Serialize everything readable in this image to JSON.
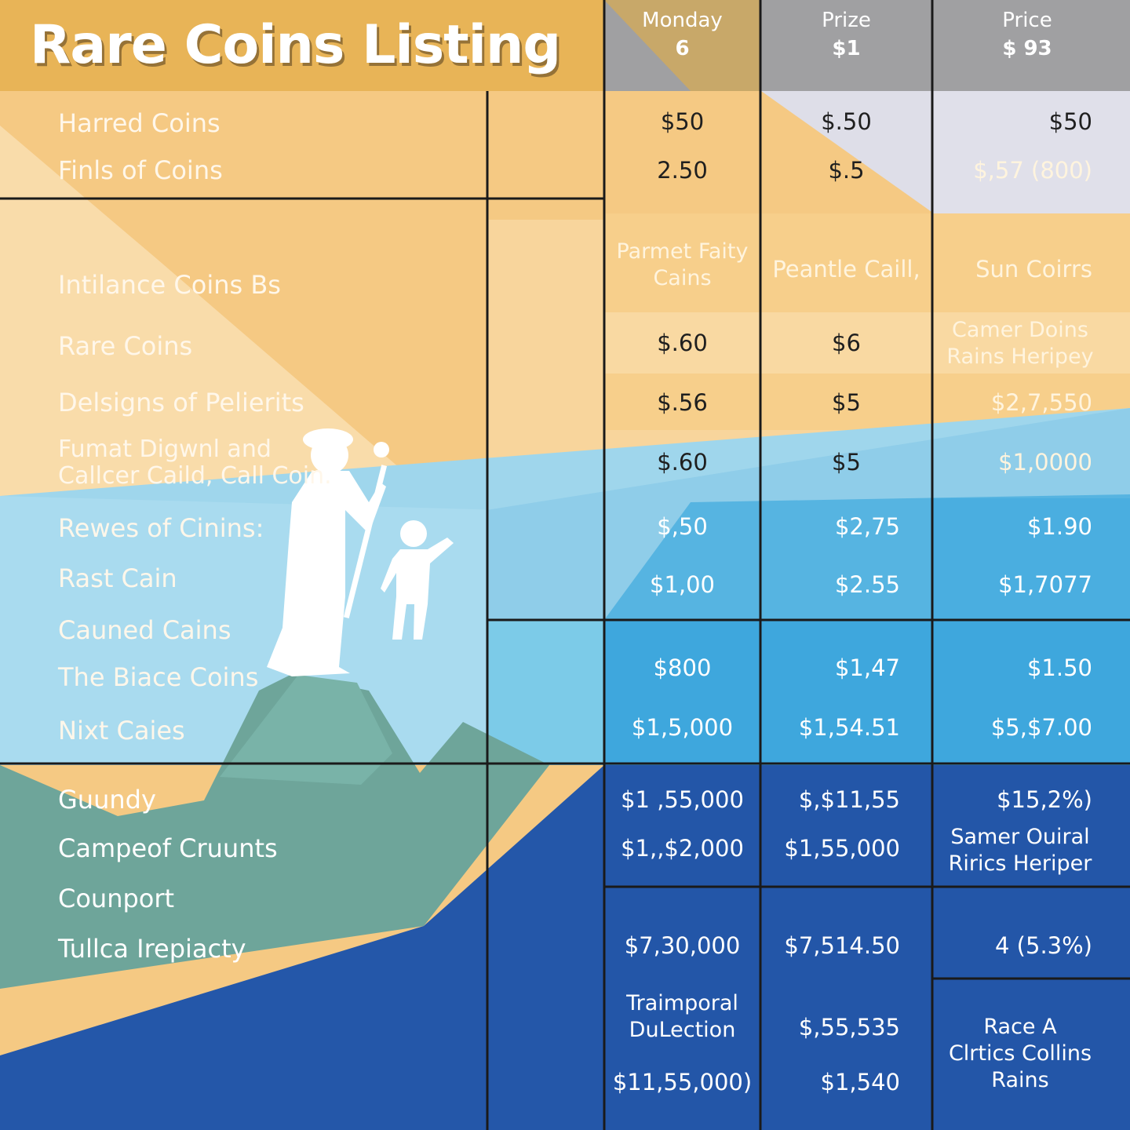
{
  "title": "Rare Coins Listing",
  "header": {
    "col1": {
      "line1": "Monday",
      "line2": "6"
    },
    "col2": {
      "line1": "Prize",
      "line2": "$1"
    },
    "col3": {
      "line1": "Price",
      "line2": "$ 93"
    }
  },
  "rows": [
    {
      "label": "Harred Coins",
      "c1": "$50",
      "c2": "$.50",
      "c3": "$50"
    },
    {
      "label": "Finls of Coins",
      "c1": "2.50",
      "c2": "$.5",
      "c3": "$,57 (800)"
    },
    {
      "label": "Intilance Coins Bs",
      "c1": "Parmet Faity\nCains",
      "c2": "Peantle Caill,",
      "c3": "Sun Coirrs"
    },
    {
      "label": "Rare Coins",
      "c1": "$.60",
      "c2": "$6",
      "c3": "Camer Doins\nRains Heripey"
    },
    {
      "label": "Delsigns of Pelierits",
      "c1": "$.56",
      "c2": "$5",
      "c3": "$2,7,550"
    },
    {
      "label": "Fumat Digwnl and\nCallcer Caild, Call Coin.",
      "c1": "$.60",
      "c2": "$5",
      "c3": "$1,0000"
    },
    {
      "label": "Rewes of Cinins:",
      "c1": "$,50",
      "c2": "$2,75",
      "c3": "$1.90"
    },
    {
      "label": "Rast Cain",
      "c1": "$1,00",
      "c2": "$2.55",
      "c3": "$1,7077"
    },
    {
      "label": "Cauned Cains",
      "c1": "",
      "c2": "",
      "c3": ""
    },
    {
      "label": "The Biace Coins",
      "c1": "$800",
      "c2": "$1,47",
      "c3": "$1.50"
    },
    {
      "label": "Nixt Caies",
      "c1": "$1,5,000",
      "c2": "$1,54.51",
      "c3": "$5,$7.00"
    },
    {
      "label": "Guundy",
      "c1": "$1 ,55,000",
      "c2": "$,$11,55",
      "c3": "$15,2%)"
    },
    {
      "label": "Campeof Cruunts",
      "c1": "$1,,$2,000",
      "c2": "$1,55,000",
      "c3": "Samer Ouiral\nRirics Heriper"
    },
    {
      "label": "Counport",
      "c1": "",
      "c2": "",
      "c3": ""
    },
    {
      "label": "Tullca Irepiacty",
      "c1": "$7,30,000",
      "c2": "$7,514.50",
      "c3": "4 (5.3%)"
    }
  ],
  "footer": {
    "c1a": "Traimporal\nDuLection",
    "c1b": "$11,55,000)",
    "c2a": "$,55,535",
    "c2b": "$1,540",
    "c3": "Race A\nClrtics Collins\nRains"
  },
  "colors": {
    "sand": "#f4c77c",
    "sand_light": "#f9dca6",
    "header_gold": "#e8b457",
    "header_grey": "#9d9d9f",
    "sky": "#7fcbe8",
    "blue_mid": "#3ea6dc",
    "navy": "#2356a8",
    "mountain": "#6ea59a",
    "silhouette": "#ffffff"
  },
  "icons": [
    "mother-silhouette-icon",
    "child-silhouette-icon",
    "mountain-icon"
  ]
}
